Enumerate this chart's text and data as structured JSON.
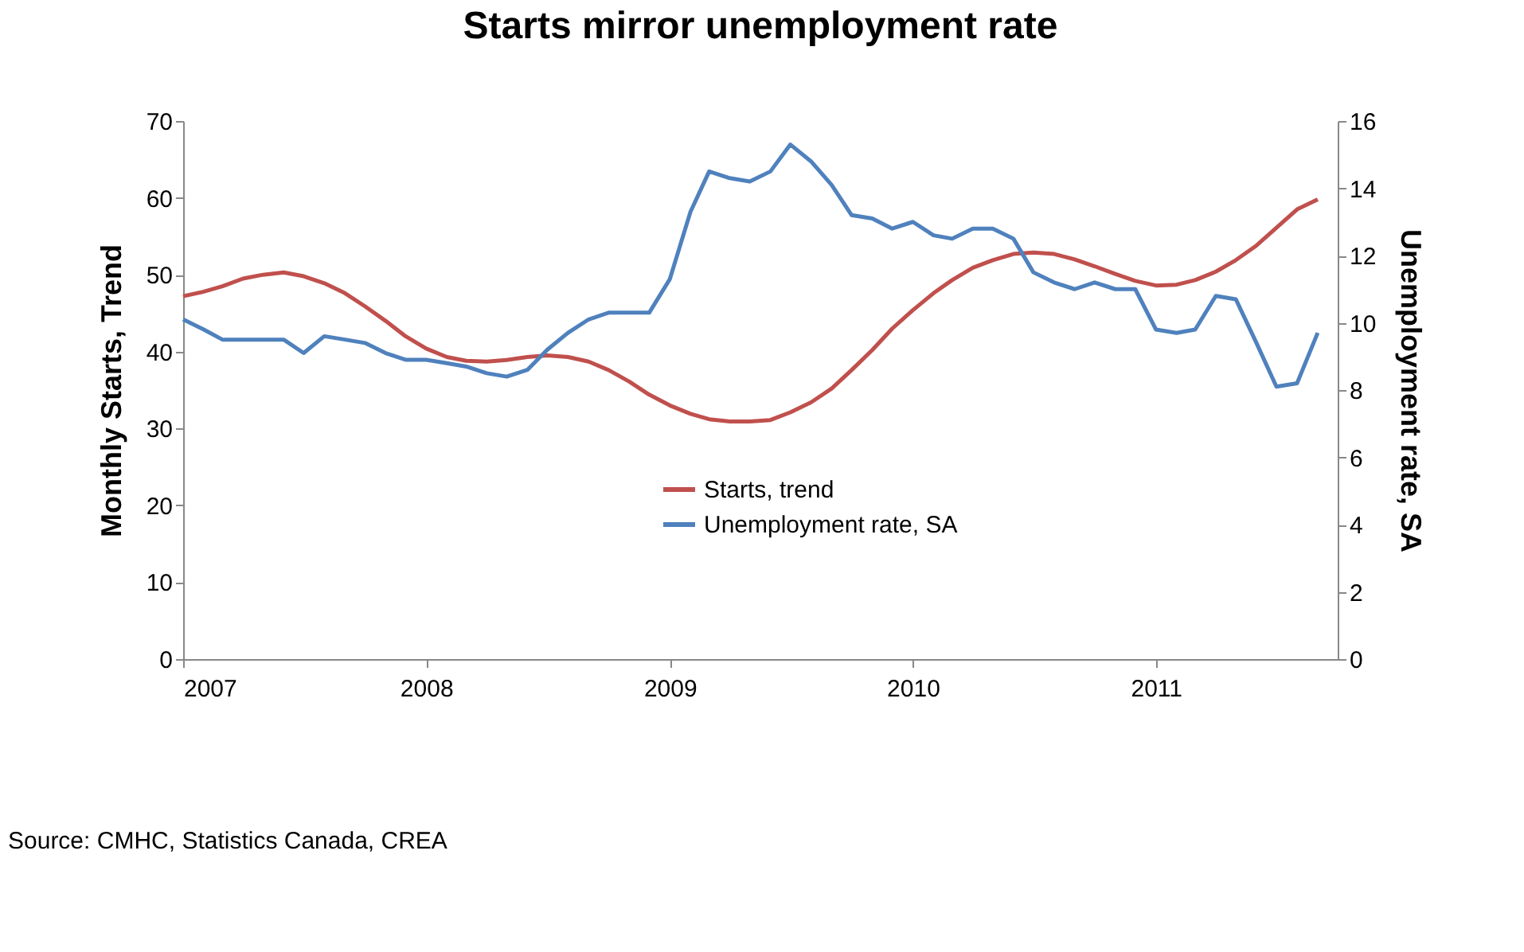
{
  "chart_data": {
    "type": "line",
    "title": "Starts mirror unemployment rate",
    "x": [
      "2007-01",
      "2007-02",
      "2007-03",
      "2007-04",
      "2007-05",
      "2007-06",
      "2007-07",
      "2007-08",
      "2007-09",
      "2007-10",
      "2007-11",
      "2007-12",
      "2008-01",
      "2008-02",
      "2008-03",
      "2008-04",
      "2008-05",
      "2008-06",
      "2008-07",
      "2008-08",
      "2008-09",
      "2008-10",
      "2008-11",
      "2008-12",
      "2009-01",
      "2009-02",
      "2009-03",
      "2009-04",
      "2009-05",
      "2009-06",
      "2009-07",
      "2009-08",
      "2009-09",
      "2009-10",
      "2009-11",
      "2009-12",
      "2010-01",
      "2010-02",
      "2010-03",
      "2010-04",
      "2010-05",
      "2010-06",
      "2010-07",
      "2010-08",
      "2010-09",
      "2010-10",
      "2010-11",
      "2010-12",
      "2011-01",
      "2011-02",
      "2011-03",
      "2011-04",
      "2011-05",
      "2011-06",
      "2011-07",
      "2011-08",
      "2011-09"
    ],
    "series": [
      {
        "name": "Starts, trend",
        "color": "#c0504d",
        "values": [
          47.2,
          47.8,
          48.5,
          49.5,
          50.0,
          50.3,
          49.8,
          48.9,
          47.6,
          45.9,
          44.0,
          42.0,
          40.4,
          39.3,
          38.8,
          38.7,
          38.9,
          39.3,
          39.5,
          39.3,
          38.7,
          37.6,
          36.1,
          34.4,
          33.0,
          31.9,
          31.2,
          30.9,
          30.9,
          31.1,
          32.1,
          33.4,
          35.2,
          37.6,
          40.2,
          43.0,
          45.4,
          47.6,
          49.3,
          50.9,
          51.9,
          52.7,
          52.9,
          52.7,
          52.0,
          51.1,
          50.1,
          49.2,
          48.6,
          48.7,
          49.3,
          50.4,
          51.9,
          53.8,
          56.1,
          58.5,
          59.8
        ]
      },
      {
        "name": "Unemployment rate, SA",
        "color": "#4f81bd",
        "axis": "y2",
        "values": [
          10.1,
          9.8,
          9.5,
          9.5,
          9.5,
          9.5,
          9.1,
          9.6,
          9.5,
          9.4,
          9.1,
          8.9,
          8.9,
          8.8,
          8.7,
          8.5,
          8.4,
          8.6,
          9.2,
          9.7,
          10.1,
          10.3,
          10.3,
          10.3,
          11.3,
          13.3,
          14.5,
          14.3,
          14.2,
          14.5,
          15.3,
          14.8,
          14.1,
          13.2,
          13.1,
          12.8,
          13.0,
          12.6,
          12.5,
          12.8,
          12.8,
          12.5,
          11.5,
          11.2,
          11.0,
          11.2,
          11.0,
          11.0,
          9.8,
          9.7,
          9.8,
          10.8,
          10.7,
          9.4,
          8.1,
          8.2,
          9.7
        ]
      }
    ],
    "xlim": [
      "2007-01",
      "2011-10"
    ],
    "xticks": [
      "2007",
      "2008",
      "2009",
      "2010",
      "2011"
    ],
    "ylim": [
      0,
      70
    ],
    "yticks": [
      0,
      10,
      20,
      30,
      40,
      50,
      60,
      70
    ],
    "ylabel": "Monthly Starts, Trend",
    "y2lim": [
      0,
      16
    ],
    "y2ticks": [
      0,
      2,
      4,
      6,
      8,
      10,
      12,
      14,
      16
    ],
    "y2label": "Unemployment rate, SA",
    "legend": "bottom",
    "grid": false,
    "line_style": "solid",
    "marker": "none",
    "annotations": [
      "Source: CMHC, Statistics Canada, CREA"
    ]
  }
}
